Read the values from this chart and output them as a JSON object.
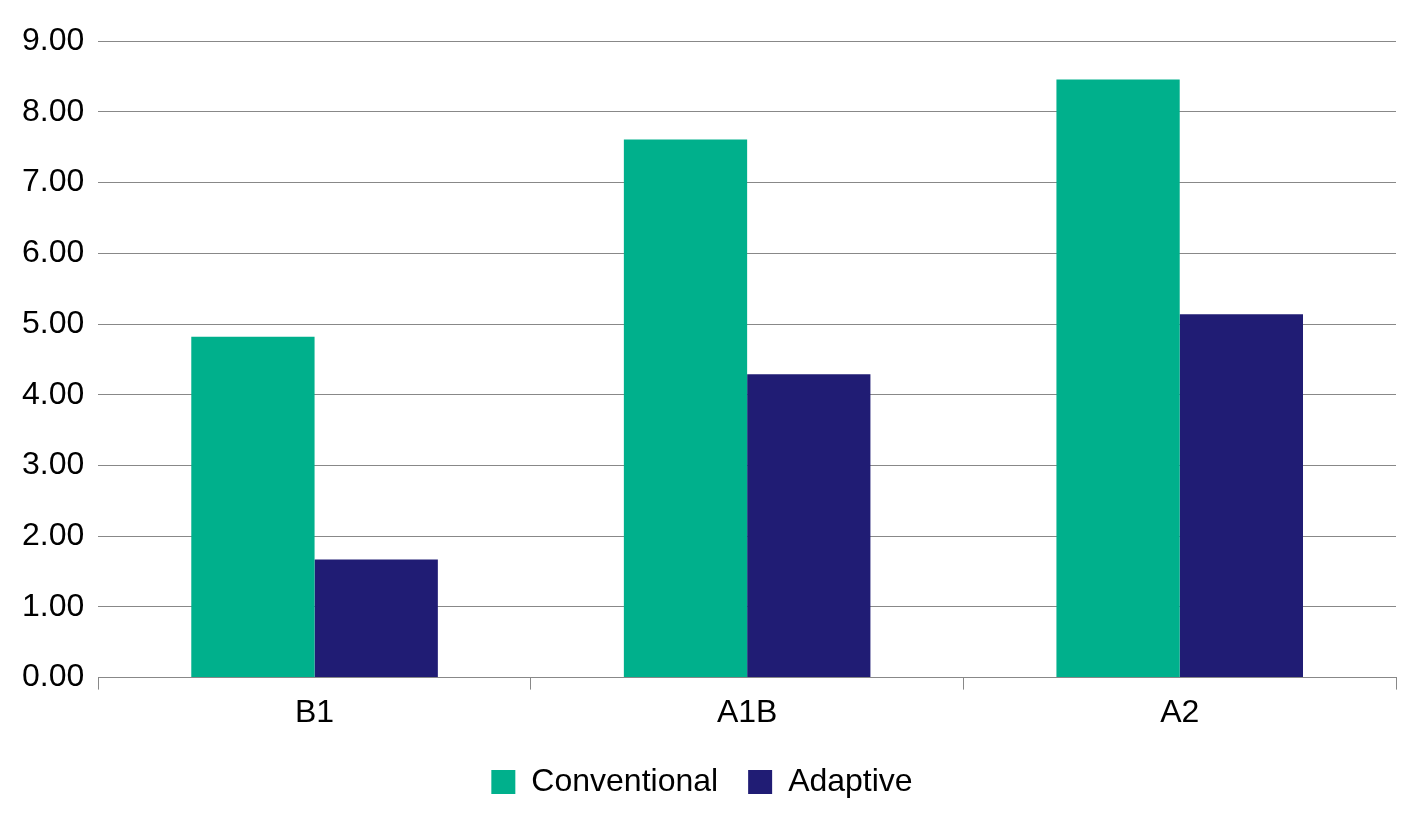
{
  "chart_data": {
    "type": "bar",
    "categories": [
      "B1",
      "A1B",
      "A2"
    ],
    "series": [
      {
        "name": "Conventional",
        "color": "#00b08c",
        "values": [
          4.82,
          7.61,
          8.46
        ]
      },
      {
        "name": "Adaptive",
        "color": "#201c74",
        "values": [
          1.67,
          4.29,
          5.14
        ]
      }
    ],
    "ylim": [
      0,
      9
    ],
    "yticks": [
      {
        "value": 0,
        "label": "0.00"
      },
      {
        "value": 1,
        "label": "1.00"
      },
      {
        "value": 2,
        "label": "2.00"
      },
      {
        "value": 3,
        "label": "3.00"
      },
      {
        "value": 4,
        "label": "4.00"
      },
      {
        "value": 5,
        "label": "5.00"
      },
      {
        "value": 6,
        "label": "6.00"
      },
      {
        "value": 7,
        "label": "7.00"
      },
      {
        "value": 8,
        "label": "8.00"
      },
      {
        "value": 9,
        "label": "9.00"
      }
    ],
    "grid": "y",
    "legend": "bottom"
  }
}
